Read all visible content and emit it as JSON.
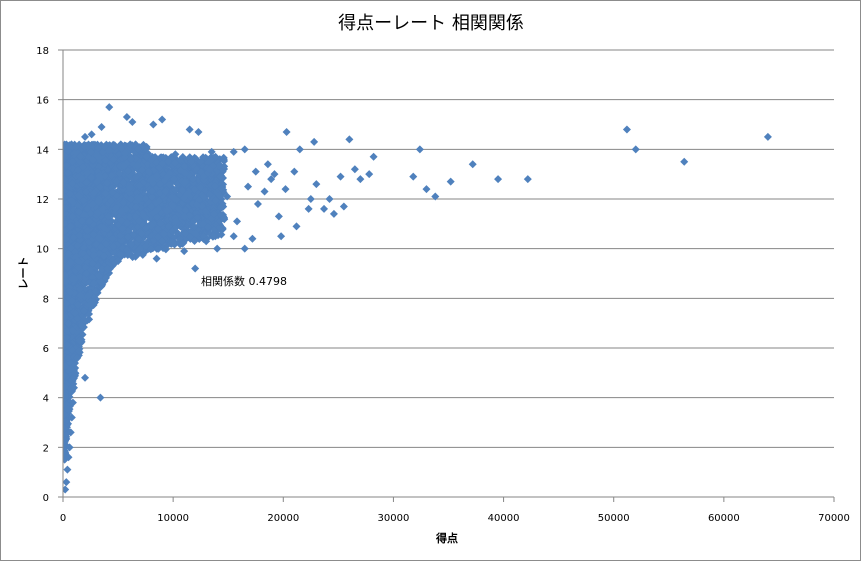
{
  "chart_data": {
    "type": "scatter",
    "title": "得点ーレート 相関関係",
    "xlabel": "得点",
    "ylabel": "レート",
    "xlim": [
      0,
      70000
    ],
    "ylim": [
      0,
      18
    ],
    "x_ticks": [
      "0",
      "10000",
      "20000",
      "30000",
      "40000",
      "50000",
      "60000",
      "70000"
    ],
    "y_ticks": [
      "0",
      "2",
      "4",
      "6",
      "8",
      "10",
      "12",
      "14",
      "16",
      "18"
    ],
    "horizontal_gridlines": true,
    "legend": "none",
    "marker": "diamond",
    "marker_color": "#4f81bd",
    "annotation": "相関係数 0.4798",
    "series": [
      {
        "points": [
          [
            200,
            0.3
          ],
          [
            300,
            0.6
          ],
          [
            400,
            1.1
          ],
          [
            500,
            1.6
          ],
          [
            600,
            2.0
          ],
          [
            700,
            2.6
          ],
          [
            800,
            3.2
          ],
          [
            900,
            3.8
          ],
          [
            1000,
            4.4
          ],
          [
            1100,
            5.0
          ],
          [
            1300,
            5.6
          ],
          [
            1500,
            6.3
          ],
          [
            1700,
            6.9
          ],
          [
            2000,
            4.8
          ],
          [
            1900,
            7.5
          ],
          [
            2300,
            8.1
          ],
          [
            2800,
            8.6
          ],
          [
            3400,
            4.0
          ],
          [
            3300,
            8.9
          ],
          [
            4000,
            9.2
          ],
          [
            5000,
            9.5
          ],
          [
            6000,
            9.8
          ],
          [
            7500,
            10.1
          ],
          [
            9000,
            10.3
          ],
          [
            12000,
            9.2
          ],
          [
            1200,
            14.1
          ],
          [
            2000,
            14.5
          ],
          [
            2600,
            14.6
          ],
          [
            3500,
            14.9
          ],
          [
            4200,
            15.7
          ],
          [
            5800,
            15.3
          ],
          [
            6300,
            15.1
          ],
          [
            8200,
            15.0
          ],
          [
            9000,
            15.2
          ],
          [
            11500,
            14.8
          ],
          [
            12300,
            14.7
          ],
          [
            13500,
            13.9
          ],
          [
            15500,
            13.9
          ],
          [
            16500,
            14.0
          ],
          [
            18600,
            13.4
          ],
          [
            19200,
            13.0
          ],
          [
            20300,
            14.7
          ],
          [
            21500,
            14.0
          ],
          [
            22800,
            14.3
          ],
          [
            26000,
            14.4
          ],
          [
            24200,
            12.0
          ],
          [
            25500,
            11.7
          ],
          [
            26500,
            13.2
          ],
          [
            27000,
            12.8
          ],
          [
            28200,
            13.7
          ],
          [
            31800,
            12.9
          ],
          [
            32400,
            14.0
          ],
          [
            33000,
            12.4
          ],
          [
            33800,
            12.1
          ],
          [
            35200,
            12.7
          ],
          [
            37200,
            13.4
          ],
          [
            39500,
            12.8
          ],
          [
            42200,
            12.8
          ],
          [
            51200,
            14.8
          ],
          [
            52000,
            14.0
          ],
          [
            56400,
            13.5
          ],
          [
            64000,
            14.5
          ],
          [
            15500,
            10.5
          ],
          [
            17200,
            10.4
          ],
          [
            19800,
            10.5
          ],
          [
            21200,
            10.9
          ],
          [
            23700,
            11.6
          ],
          [
            16500,
            10.0
          ],
          [
            14000,
            10.0
          ],
          [
            13000,
            10.3
          ],
          [
            11000,
            9.9
          ],
          [
            7000,
            10.0
          ],
          [
            8500,
            9.6
          ],
          [
            10200,
            13.8
          ],
          [
            12500,
            13.5
          ],
          [
            14300,
            12.9
          ],
          [
            16800,
            12.5
          ],
          [
            18300,
            12.3
          ],
          [
            20200,
            12.4
          ],
          [
            22500,
            12.0
          ],
          [
            24600,
            11.4
          ],
          [
            27800,
            13.0
          ],
          [
            17700,
            11.8
          ],
          [
            19600,
            11.3
          ],
          [
            22300,
            11.6
          ],
          [
            15800,
            11.1
          ],
          [
            14900,
            12.1
          ],
          [
            13700,
            11.4
          ],
          [
            12700,
            11.0
          ],
          [
            11300,
            12.2
          ],
          [
            10500,
            11.6
          ],
          [
            9600,
            10.9
          ],
          [
            8800,
            12.6
          ],
          [
            7800,
            13.1
          ],
          [
            6900,
            12.0
          ],
          [
            6100,
            14.2
          ],
          [
            5300,
            11.5
          ],
          [
            4600,
            13.6
          ],
          [
            3900,
            10.2
          ],
          [
            3100,
            12.7
          ],
          [
            2400,
            11.1
          ],
          [
            1800,
            13.3
          ],
          [
            1400,
            9.5
          ],
          [
            1000,
            8.8
          ],
          [
            800,
            7.9
          ],
          [
            700,
            10.9
          ],
          [
            600,
            12.2
          ],
          [
            500,
            9.8
          ],
          [
            900,
            6.7
          ],
          [
            1300,
            7.2
          ],
          [
            1600,
            8.1
          ],
          [
            2100,
            9.0
          ],
          [
            2700,
            9.4
          ],
          [
            3700,
            9.7
          ],
          [
            4500,
            10.4
          ],
          [
            5400,
            10.8
          ],
          [
            6600,
            11.3
          ],
          [
            8000,
            11.7
          ],
          [
            9300,
            12.3
          ],
          [
            11800,
            12.8
          ],
          [
            13300,
            13.2
          ],
          [
            14600,
            13.6
          ],
          [
            17500,
            13.1
          ],
          [
            18900,
            12.8
          ],
          [
            21000,
            13.1
          ],
          [
            23000,
            12.6
          ],
          [
            25200,
            12.9
          ]
        ]
      }
    ]
  }
}
